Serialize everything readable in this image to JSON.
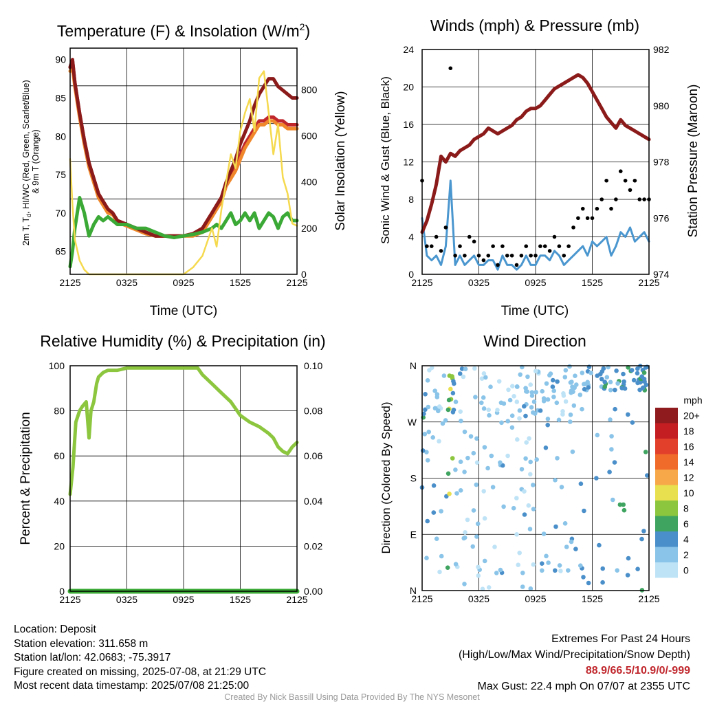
{
  "chart_data": [
    {
      "type": "line",
      "title": "Temperature (F) & Insolation (W/m²)",
      "xlabel": "Time (UTC)",
      "ylabel_left": "2m T, T_d, HI/WC (Red, Green, Scarlet/Blue) & 9m T (Orange)",
      "ylabel_right": "Solar Insolation (Yellow)",
      "x_ticks": [
        "2125",
        "0325",
        "0925",
        "1525",
        "2125"
      ],
      "ylim_left": [
        62,
        91.5
      ],
      "ylim_right": [
        0,
        980
      ],
      "y_ticks_left": [
        65,
        70,
        75,
        80,
        85,
        90
      ],
      "y_ticks_right": [
        0,
        200,
        400,
        600,
        800
      ],
      "x_hours": [
        0,
        0.25,
        0.5,
        1,
        1.5,
        2,
        2.5,
        3,
        3.5,
        4,
        4.5,
        5,
        6,
        7,
        8,
        9,
        10,
        11,
        12,
        13,
        14,
        15,
        15.5,
        16,
        16.5,
        17,
        17.5,
        18,
        18.5,
        19,
        19.5,
        20,
        20.5,
        21,
        21.5,
        22,
        22.5,
        23,
        23.5,
        24
      ],
      "series": [
        {
          "name": "2m T",
          "color": "#c0272d",
          "axis": "left",
          "values": [
            89.0,
            90.0,
            87.0,
            83.0,
            79.5,
            76.5,
            74.5,
            72.5,
            71.5,
            70.5,
            70.0,
            69.0,
            68.5,
            68.0,
            67.5,
            67.0,
            67.0,
            67.0,
            67.0,
            67.3,
            68.0,
            70.0,
            71.0,
            72.0,
            74.0,
            75.0,
            76.0,
            77.5,
            79.0,
            80.0,
            81.0,
            82.0,
            82.0,
            82.5,
            82.5,
            82.0,
            82.0,
            81.5,
            81.5,
            81.5
          ]
        },
        {
          "name": "9m T",
          "color": "#f0872a",
          "axis": "left",
          "values": [
            88.5,
            89.0,
            86.5,
            82.5,
            79.0,
            76.0,
            74.0,
            72.0,
            71.0,
            70.0,
            69.8,
            68.8,
            68.3,
            67.8,
            67.3,
            67.0,
            67.0,
            67.0,
            67.0,
            67.0,
            67.5,
            69.5,
            70.5,
            71.5,
            73.5,
            74.5,
            75.5,
            77.0,
            78.5,
            79.5,
            80.5,
            81.5,
            81.5,
            82.0,
            82.0,
            81.5,
            81.5,
            81.0,
            81.0,
            81.0
          ]
        },
        {
          "name": "HI/WC",
          "color": "#8b1a1a",
          "axis": "left",
          "values": [
            89.0,
            90.0,
            87.0,
            83.0,
            79.5,
            76.5,
            74.5,
            72.5,
            71.5,
            70.5,
            70.0,
            69.0,
            68.5,
            68.0,
            67.5,
            67.0,
            67.0,
            67.0,
            67.0,
            67.3,
            68.0,
            70.0,
            71.0,
            72.0,
            74.0,
            75.5,
            77.0,
            79.0,
            80.5,
            82.0,
            84.0,
            85.5,
            86.5,
            87.5,
            87.5,
            86.5,
            86.0,
            85.5,
            85.0,
            85.0
          ]
        },
        {
          "name": "T_d",
          "color": "#3aa935",
          "axis": "left",
          "values": [
            63.0,
            65.0,
            68.0,
            72.0,
            70.0,
            67.0,
            68.5,
            69.5,
            69.0,
            69.5,
            69.0,
            68.5,
            68.5,
            68.0,
            68.0,
            67.5,
            67.0,
            66.8,
            67.0,
            67.2,
            67.5,
            68.0,
            68.5,
            68.0,
            69.0,
            70.0,
            68.5,
            69.0,
            70.0,
            69.0,
            70.0,
            68.0,
            69.0,
            70.0,
            69.5,
            68.0,
            69.5,
            70.0,
            69.0,
            69.0
          ]
        },
        {
          "name": "Solar Insolation",
          "color": "#f5d94e",
          "axis": "right",
          "values": [
            500,
            300,
            150,
            60,
            20,
            0,
            0,
            0,
            0,
            0,
            0,
            0,
            0,
            0,
            0,
            0,
            0,
            0,
            0,
            30,
            80,
            200,
            120,
            280,
            400,
            520,
            460,
            620,
            700,
            760,
            620,
            850,
            880,
            700,
            520,
            650,
            420,
            350,
            220,
            210
          ]
        }
      ]
    },
    {
      "type": "line",
      "title": "Winds (mph) & Pressure (mb)",
      "xlabel": "Time (UTC)",
      "ylabel_left": "Sonic Wind & Gust (Blue, Black)",
      "ylabel_right": "Station Pressure (Maroon)",
      "x_ticks": [
        "2125",
        "0325",
        "0925",
        "1525",
        "2125"
      ],
      "ylim_left": [
        0,
        24
      ],
      "ylim_right": [
        974,
        982
      ],
      "y_ticks_left": [
        0,
        4,
        8,
        12,
        16,
        20,
        24
      ],
      "y_ticks_right": [
        974,
        976,
        978,
        980,
        982
      ],
      "x_hours": [
        0,
        0.5,
        1,
        1.5,
        2,
        2.5,
        3,
        3.5,
        4,
        4.5,
        5,
        5.5,
        6,
        6.5,
        7,
        7.5,
        8,
        8.5,
        9,
        9.5,
        10,
        10.5,
        11,
        11.5,
        12,
        12.5,
        13,
        13.5,
        14,
        14.5,
        15,
        15.5,
        16,
        16.5,
        17,
        17.5,
        18,
        18.5,
        19,
        19.5,
        20,
        20.5,
        21,
        21.5,
        22,
        22.5,
        23,
        23.5,
        24
      ],
      "series": [
        {
          "name": "Sonic Wind",
          "color": "#4a96cf",
          "axis": "left",
          "values": [
            6,
            2,
            1.5,
            2,
            1,
            3,
            10,
            1,
            2,
            1,
            1.5,
            2,
            1,
            1,
            1.5,
            1.5,
            0.5,
            2,
            1,
            1,
            0.5,
            1,
            2,
            1,
            1,
            2,
            2,
            1.5,
            2.5,
            2,
            1,
            1.5,
            2,
            2.5,
            3,
            2,
            3.5,
            3,
            3.5,
            4,
            2,
            3,
            4.5,
            4,
            5,
            3.5,
            4,
            4.5,
            3.5
          ]
        },
        {
          "name": "Gust",
          "color": "#000000",
          "axis": "left",
          "values": [
            10,
            3,
            3,
            4,
            2.5,
            5,
            22,
            2,
            3,
            2,
            4,
            3.5,
            2,
            1.5,
            2,
            3,
            1,
            3,
            2,
            2,
            1,
            2,
            3,
            2,
            2,
            3,
            3,
            2.5,
            4,
            3,
            2,
            3,
            5,
            6,
            7,
            6,
            6,
            7,
            8,
            10,
            7,
            8,
            11,
            10,
            9,
            10,
            8,
            8,
            8
          ]
        },
        {
          "name": "Station Pressure",
          "color": "#8b1a1a",
          "axis": "right",
          "values": [
            975.5,
            975.9,
            976.5,
            977.2,
            978.2,
            978.0,
            978.3,
            978.2,
            978.4,
            978.5,
            978.6,
            978.8,
            978.9,
            979.0,
            979.2,
            979.1,
            979.0,
            979.1,
            979.2,
            979.3,
            979.5,
            979.6,
            979.8,
            979.9,
            979.9,
            980.0,
            980.2,
            980.4,
            980.6,
            980.7,
            980.8,
            980.9,
            981.0,
            981.1,
            981.0,
            980.8,
            980.5,
            980.2,
            979.9,
            979.6,
            979.4,
            979.2,
            979.5,
            979.3,
            979.2,
            979.1,
            979.0,
            978.9,
            978.8
          ]
        }
      ]
    },
    {
      "type": "line",
      "title": "Relative Humidity (%) & Precipitation (in)",
      "xlabel": "",
      "ylabel_left": "Percent & Precipitation",
      "x_ticks": [
        "2125",
        "0325",
        "0925",
        "1525",
        "2125"
      ],
      "ylim_left": [
        0,
        100
      ],
      "ylim_right": [
        0,
        0.1
      ],
      "y_ticks_left": [
        0,
        20,
        40,
        60,
        80,
        100
      ],
      "y_ticks_right": [
        "0.00",
        "0.02",
        "0.04",
        "0.06",
        "0.08",
        "0.10"
      ],
      "x_hours": [
        0,
        0.3,
        0.6,
        1,
        1.3,
        1.7,
        2,
        2.2,
        2.5,
        2.8,
        3,
        3.5,
        4,
        5,
        6,
        8,
        10,
        12,
        13,
        13.5,
        14,
        15,
        16,
        17,
        18,
        19,
        20,
        21,
        21.5,
        22,
        22.5,
        23,
        23.5,
        24
      ],
      "series": [
        {
          "name": "Relative Humidity",
          "color": "#8cc63f",
          "axis": "left",
          "values": [
            43,
            55,
            75,
            80,
            82,
            84,
            68,
            80,
            84,
            92,
            95,
            97,
            98,
            98,
            99,
            99,
            99,
            99,
            99,
            99,
            96,
            92,
            88,
            84,
            78,
            75,
            73,
            70,
            68,
            64,
            62,
            61,
            64,
            66
          ]
        },
        {
          "name": "Precipitation",
          "color": "#3aa935",
          "axis": "right",
          "values": [
            0,
            0,
            0,
            0,
            0,
            0,
            0,
            0,
            0,
            0,
            0,
            0,
            0,
            0,
            0,
            0,
            0,
            0,
            0,
            0,
            0,
            0,
            0,
            0,
            0,
            0,
            0,
            0,
            0,
            0,
            0,
            0,
            0,
            0
          ]
        }
      ]
    },
    {
      "type": "scatter",
      "title": "Wind Direction",
      "ylabel": "Direction (Colored By Speed)",
      "x_ticks": [
        "2125",
        "0325",
        "0925",
        "1525",
        "2125"
      ],
      "y_ticks": [
        "N",
        "E",
        "S",
        "W",
        "N"
      ],
      "ylim": [
        0,
        360
      ],
      "legend_title": "mph",
      "legend_labels": [
        "0",
        "2",
        "4",
        "6",
        "8",
        "10",
        "12",
        "14",
        "16",
        "18",
        "20+"
      ],
      "legend_colors": [
        "#bfe3f6",
        "#8ac4e8",
        "#4a8fc9",
        "#3fa460",
        "#8cc63f",
        "#e8e04e",
        "#f7a94a",
        "#f06a2a",
        "#e3402b",
        "#c41e22",
        "#8f1b1e"
      ],
      "points_sample": [
        {
          "h": 0.0,
          "dir": 110,
          "spd": 5
        },
        {
          "h": 2.5,
          "dir": 345,
          "spd": 9
        }
      ]
    }
  ],
  "info": {
    "location": "Location: Deposit",
    "elevation": "Station elevation: 311.658 m",
    "latlon": "Station lat/lon: 42.0683; -75.3917",
    "created": "Figure created on missing, 2025-07-08, at 21:29 UTC",
    "recent": "Most recent data timestamp: 2025/07/08 21:25:00"
  },
  "extremes": {
    "title": "Extremes For Past 24 Hours",
    "subtitle": "(High/Low/Max Wind/Precipitation/Snow Depth)",
    "values": "88.9/66.5/10.9/0/-999",
    "gust": "Max Gust: 22.4 mph On 07/07 at 2355 UTC"
  },
  "credit": "Created By Nick Bassill Using Data Provided By The NYS Mesonet"
}
